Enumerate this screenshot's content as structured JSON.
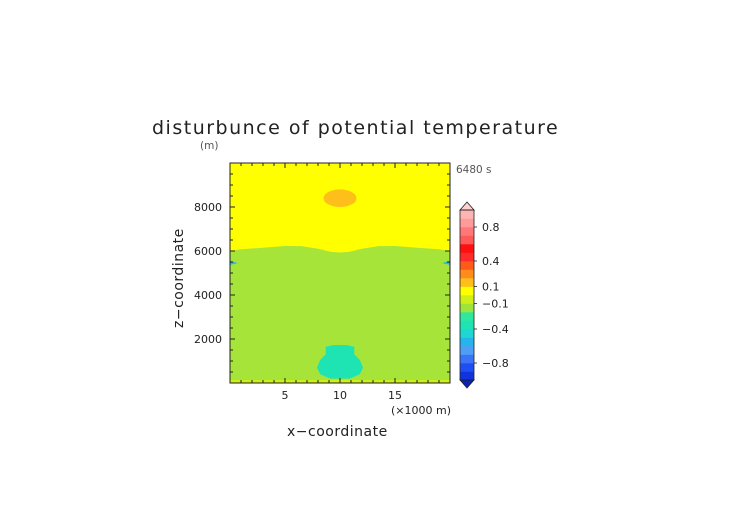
{
  "chart_data": {
    "type": "heatmap",
    "title": "disturbunce of potential temperature",
    "time_label": "6480 s",
    "xlabel": "x−coordinate",
    "ylabel": "z−coordinate",
    "y_unit": "(m)",
    "x_unit": "(×1000 m)",
    "xlim": [
      0,
      20
    ],
    "ylim": [
      0,
      10000
    ],
    "x_ticks": [
      5,
      10,
      15
    ],
    "y_ticks": [
      2000,
      4000,
      6000,
      8000
    ],
    "grid": false,
    "colorbar": {
      "position": "right",
      "levels": [
        -1.0,
        -0.9,
        -0.8,
        -0.7,
        -0.6,
        -0.5,
        -0.4,
        -0.3,
        -0.2,
        -0.1,
        0.0,
        0.1,
        0.2,
        0.3,
        0.4,
        0.5,
        0.6,
        0.7,
        0.8,
        0.9,
        1.0
      ],
      "colors": [
        "#1133dd",
        "#1f4ff2",
        "#3b74f7",
        "#4f9ef5",
        "#26b3ee",
        "#1ed7d0",
        "#1ee4b4",
        "#2fe89f",
        "#9fe43a",
        "#cfef18",
        "#ffff00",
        "#ffbf1a",
        "#ff8c1a",
        "#ff5a1a",
        "#ff2a2a",
        "#ff1010",
        "#ff5a5a",
        "#ff7777",
        "#ff9a9a",
        "#ffb4b4"
      ],
      "tick_labels": [
        "0.8",
        "0.4",
        "0.1",
        "−0.1",
        "−0.4",
        "−0.8"
      ],
      "tick_values": [
        0.8,
        0.4,
        0.1,
        -0.1,
        -0.4,
        -0.8
      ]
    },
    "regions": [
      {
        "name": "upper-layer",
        "value": 0.05,
        "color": "#ffff00"
      },
      {
        "name": "lower-layer",
        "value": -0.15,
        "color": "#a6e43a"
      },
      {
        "name": "warm-anomaly",
        "value": 0.15,
        "color": "#ffbf1a",
        "center": [
          10,
          8400
        ]
      },
      {
        "name": "cold-anomaly",
        "value": -0.35,
        "color": "#1ee4b4",
        "center": [
          10,
          900
        ]
      }
    ]
  }
}
